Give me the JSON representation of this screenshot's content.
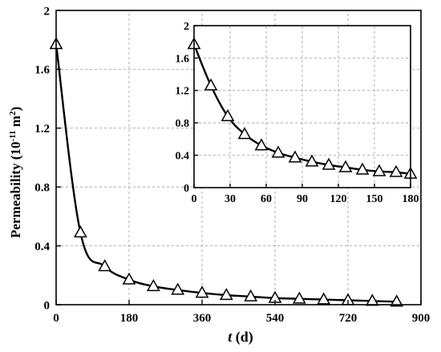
{
  "chart_data": [
    {
      "type": "line",
      "role": "main",
      "xlabel_italic": "t",
      "xlabel_rest": " (d)",
      "ylabel_main": "Permeability (10",
      "ylabel_exp": "-11",
      "ylabel_unit": " m",
      "ylabel_unit_exp": "2",
      "ylabel_close": ")",
      "xlim": [
        0,
        900
      ],
      "ylim": [
        0,
        2
      ],
      "xticks": [
        0,
        180,
        360,
        540,
        720,
        900
      ],
      "yticks": [
        0,
        0.4,
        0.8,
        1.2,
        1.6,
        2
      ],
      "xtick_labels": [
        "0",
        "180",
        "360",
        "540",
        "720",
        "900"
      ],
      "ytick_labels": [
        "0",
        "0.4",
        "0.8",
        "1.2",
        "1.6",
        "2"
      ],
      "marker": "triangle-open",
      "grid": true,
      "series": [
        {
          "x": [
            0,
            60,
            120,
            180,
            240,
            300,
            360,
            420,
            480,
            540,
            600,
            660,
            720,
            780,
            840
          ],
          "y": [
            1.77,
            0.49,
            0.26,
            0.17,
            0.125,
            0.1,
            0.08,
            0.065,
            0.055,
            0.045,
            0.04,
            0.035,
            0.03,
            0.025,
            0.02
          ]
        }
      ]
    },
    {
      "type": "line",
      "role": "inset",
      "xlim": [
        0,
        180
      ],
      "ylim": [
        0,
        2
      ],
      "xticks": [
        0,
        30,
        60,
        90,
        120,
        150,
        180
      ],
      "yticks": [
        0,
        0.4,
        0.8,
        1.2,
        1.6,
        2
      ],
      "xtick_labels": [
        "0",
        "30",
        "60",
        "90",
        "120",
        "150",
        "180"
      ],
      "ytick_labels": [
        "0",
        "0.4",
        "0.8",
        "1.2",
        "1.6",
        "2"
      ],
      "marker": "triangle-open",
      "grid": true,
      "series": [
        {
          "x": [
            0,
            14,
            28,
            42,
            56,
            70,
            84,
            98,
            112,
            126,
            140,
            154,
            168,
            180
          ],
          "y": [
            1.77,
            1.26,
            0.88,
            0.66,
            0.52,
            0.43,
            0.37,
            0.32,
            0.28,
            0.25,
            0.22,
            0.2,
            0.19,
            0.17
          ]
        }
      ]
    }
  ]
}
